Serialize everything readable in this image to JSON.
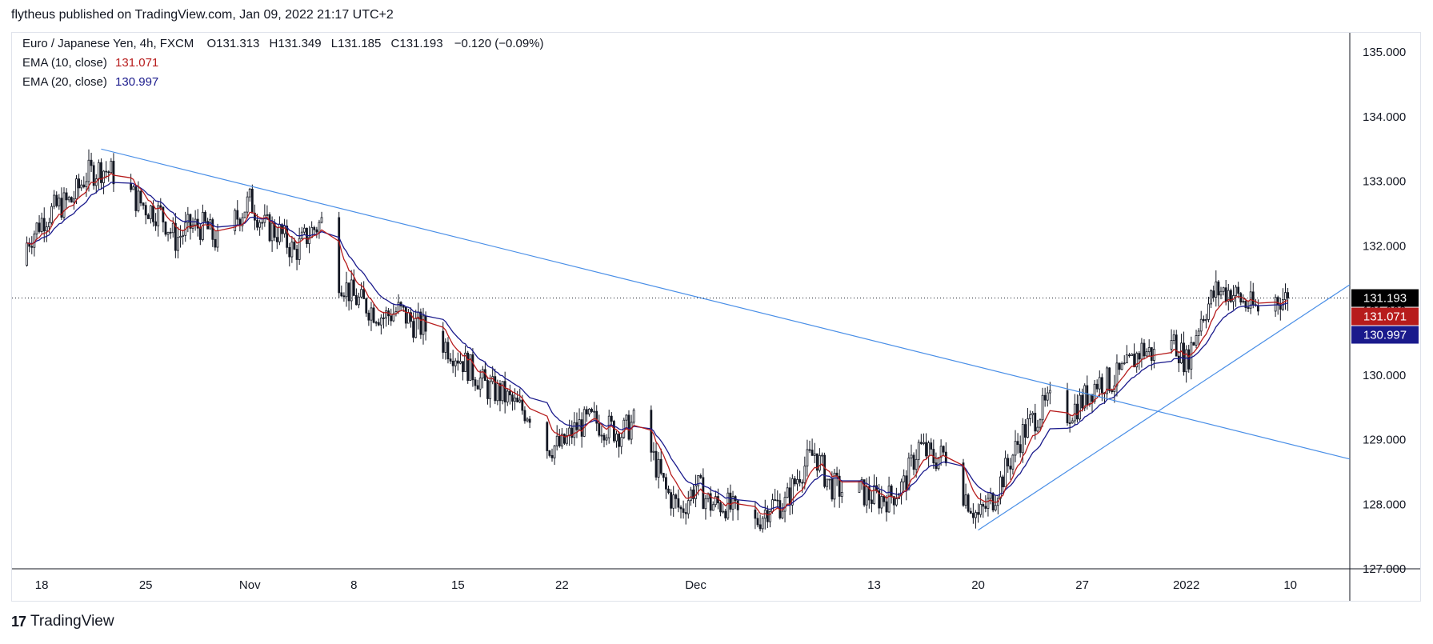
{
  "header": {
    "publish_line": "flytheus published on TradingView.com, Jan 09, 2022 21:17 UTC+2"
  },
  "legend": {
    "instrument": "Euro / Japanese Yen, 4h, FXCM",
    "open": "O131.313",
    "high": "H131.349",
    "low": "L131.185",
    "close": "C131.193",
    "change": "−0.120 (−0.09%)",
    "ema10_label": "EMA (10, close)",
    "ema10_value": "131.071",
    "ema20_label": "EMA (20, close)",
    "ema20_value": "130.997"
  },
  "footer": {
    "logo_mark": "17",
    "brand": "TradingView"
  },
  "colors": {
    "up": "#ffffff",
    "down": "#131722",
    "ema10": "#b71c1c",
    "ema20": "#1a1a8c",
    "trendline": "#4a8fe7",
    "last_price_bg": "#000000",
    "ema10_bg": "#b71c1c",
    "ema20_bg": "#1a1a8c"
  },
  "chart_data": {
    "type": "candlestick",
    "title": "Euro / Japanese Yen, 4h, FXCM",
    "y_axis": {
      "ylim": [
        127.0,
        135.3
      ],
      "ticks": [
        "127.000",
        "128.000",
        "129.000",
        "130.000",
        "131.000",
        "132.000",
        "133.000",
        "134.000",
        "135.000"
      ]
    },
    "x_axis": {
      "ticks": [
        "18",
        "25",
        "Nov",
        "8",
        "15",
        "22",
        "Dec",
        "13",
        "20",
        "27",
        "2022",
        "10"
      ],
      "xlim": [
        "2021-10-16",
        "2022-01-14"
      ]
    },
    "price_labels": {
      "last": "131.193",
      "ema10": "131.071",
      "ema20": "130.997"
    },
    "last_price": 131.193,
    "price_path": [
      [
        "2021-10-16",
        131.7
      ],
      [
        "2021-10-18",
        132.4
      ],
      [
        "2021-10-19",
        132.6
      ],
      [
        "2021-10-20",
        132.7
      ],
      [
        "2021-10-21",
        133.1
      ],
      [
        "2021-10-22",
        133.2
      ],
      [
        "2021-10-23",
        133.1
      ],
      [
        "2021-10-24",
        132.8
      ],
      [
        "2021-10-25",
        132.6
      ],
      [
        "2021-10-26",
        132.5
      ],
      [
        "2021-10-27",
        132.1
      ],
      [
        "2021-10-28",
        132.3
      ],
      [
        "2021-10-29",
        132.3
      ],
      [
        "2021-10-30",
        132.0
      ],
      [
        "2021-10-31",
        132.4
      ],
      [
        "2021-11-01",
        132.7
      ],
      [
        "2021-11-02",
        132.3
      ],
      [
        "2021-11-03",
        132.2
      ],
      [
        "2021-11-04",
        131.9
      ],
      [
        "2021-11-05",
        132.2
      ],
      [
        "2021-11-06",
        132.4
      ],
      [
        "2021-11-07",
        131.5
      ],
      [
        "2021-11-08",
        131.2
      ],
      [
        "2021-11-10",
        130.9
      ],
      [
        "2021-11-11",
        131.0
      ],
      [
        "2021-11-12",
        130.8
      ],
      [
        "2021-11-13",
        130.7
      ],
      [
        "2021-11-15",
        130.3
      ],
      [
        "2021-11-17",
        129.8
      ],
      [
        "2021-11-18",
        129.7
      ],
      [
        "2021-11-19",
        129.5
      ],
      [
        "2021-11-20",
        129.4
      ],
      [
        "2021-11-21",
        128.9
      ],
      [
        "2021-11-22",
        128.9
      ],
      [
        "2021-11-23",
        129.2
      ],
      [
        "2021-11-24",
        129.3
      ],
      [
        "2021-11-25",
        129.2
      ],
      [
        "2021-11-26",
        129.1
      ],
      [
        "2021-11-27",
        129.3
      ],
      [
        "2021-11-28",
        128.8
      ],
      [
        "2021-11-29",
        128.2
      ],
      [
        "2021-11-30",
        127.9
      ],
      [
        "2021-12-01",
        128.3
      ],
      [
        "2021-12-02",
        128.0
      ],
      [
        "2021-12-03",
        128.0
      ],
      [
        "2021-12-04",
        127.8
      ],
      [
        "2021-12-05",
        127.7
      ],
      [
        "2021-12-06",
        128.0
      ],
      [
        "2021-12-07",
        128.0
      ],
      [
        "2021-12-08",
        128.5
      ],
      [
        "2021-12-09",
        128.8
      ],
      [
        "2021-12-10",
        128.3
      ],
      [
        "2021-12-11",
        128.2
      ],
      [
        "2021-12-12",
        128.2
      ],
      [
        "2021-12-13",
        128.1
      ],
      [
        "2021-12-14",
        128.1
      ],
      [
        "2021-12-15",
        128.3
      ],
      [
        "2021-12-16",
        128.9
      ],
      [
        "2021-12-17",
        128.7
      ],
      [
        "2021-12-18",
        128.8
      ],
      [
        "2021-12-19",
        128.2
      ],
      [
        "2021-12-20",
        127.8
      ],
      [
        "2021-12-21",
        128.1
      ],
      [
        "2021-12-22",
        128.6
      ],
      [
        "2021-12-23",
        129.1
      ],
      [
        "2021-12-24",
        129.4
      ],
      [
        "2021-12-25",
        129.6
      ],
      [
        "2021-12-26",
        129.4
      ],
      [
        "2021-12-27",
        129.6
      ],
      [
        "2021-12-28",
        129.9
      ],
      [
        "2021-12-29",
        129.9
      ],
      [
        "2021-12-30",
        130.1
      ],
      [
        "2021-12-31",
        130.4
      ],
      [
        "2022-01-01",
        130.3
      ],
      [
        "2022-01-02",
        130.6
      ],
      [
        "2022-01-03",
        130.2
      ],
      [
        "2022-01-04",
        130.9
      ],
      [
        "2022-01-05",
        131.3
      ],
      [
        "2022-01-06",
        131.3
      ],
      [
        "2022-01-07",
        131.1
      ],
      [
        "2022-01-08",
        131.0
      ],
      [
        "2022-01-09",
        131.19
      ]
    ],
    "series": [
      {
        "name": "EMA (10, close)",
        "last": 131.071
      },
      {
        "name": "EMA (20, close)",
        "last": 130.997
      }
    ],
    "trendlines": [
      {
        "from": [
          "2021-10-22",
          133.5
        ],
        "to": [
          "2022-01-14",
          128.7
        ]
      },
      {
        "from": [
          "2021-12-20",
          127.6
        ],
        "to": [
          "2022-01-14",
          131.4
        ]
      }
    ],
    "grid": false
  }
}
